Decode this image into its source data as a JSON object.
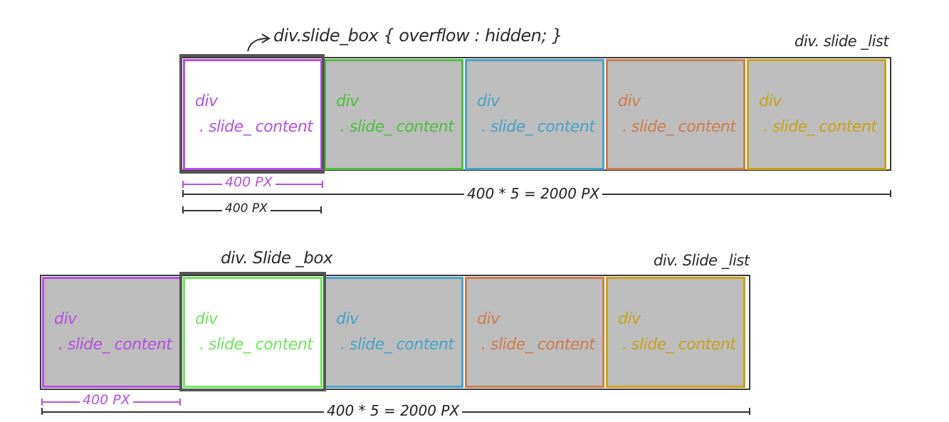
{
  "colors": {
    "purple": "#b64fe0",
    "green": "#4cbf3c",
    "green_active": "#6be85a",
    "blue": "#46a3c8",
    "orange": "#d07b4a",
    "yellow": "#c9a21a",
    "gray_fill": "#bdbdbd",
    "frame": "#3a3a3a"
  },
  "top": {
    "slide_box_label": "div.slide_box { overflow : hidden; }",
    "slide_list_label": "div. slide _list",
    "slides": [
      {
        "line1": "div",
        "line2": ". slide_ content",
        "color_key": "purple",
        "active": true
      },
      {
        "line1": "div",
        "line2": ". slide_ content",
        "color_key": "green",
        "active": false
      },
      {
        "line1": "div",
        "line2": ". slide_ content",
        "color_key": "blue",
        "active": false
      },
      {
        "line1": "div",
        "line2": ". slide_ content",
        "color_key": "orange",
        "active": false
      },
      {
        "line1": "div",
        "line2": ". slide_ content",
        "color_key": "yellow",
        "active": false
      }
    ],
    "dim_slide": "400 PX",
    "dim_total": "400 * 5 = 2000 PX",
    "dim_box": "400 PX"
  },
  "bottom": {
    "slide_box_label": "div. Slide _box",
    "slide_list_label": "div. Slide _list",
    "slides": [
      {
        "line1": "div",
        "line2": ". slide_ content",
        "color_key": "purple",
        "active": false
      },
      {
        "line1": "div",
        "line2": ". slide_ content",
        "color_key": "green_active",
        "active": true
      },
      {
        "line1": "div",
        "line2": ". slide_ content",
        "color_key": "blue",
        "active": false
      },
      {
        "line1": "div",
        "line2": ". slide_ content",
        "color_key": "orange",
        "active": false
      },
      {
        "line1": "div",
        "line2": ". slide_ content",
        "color_key": "yellow",
        "active": false
      }
    ],
    "dim_slide": "400 PX",
    "dim_total": "400 * 5 = 2000 PX"
  }
}
